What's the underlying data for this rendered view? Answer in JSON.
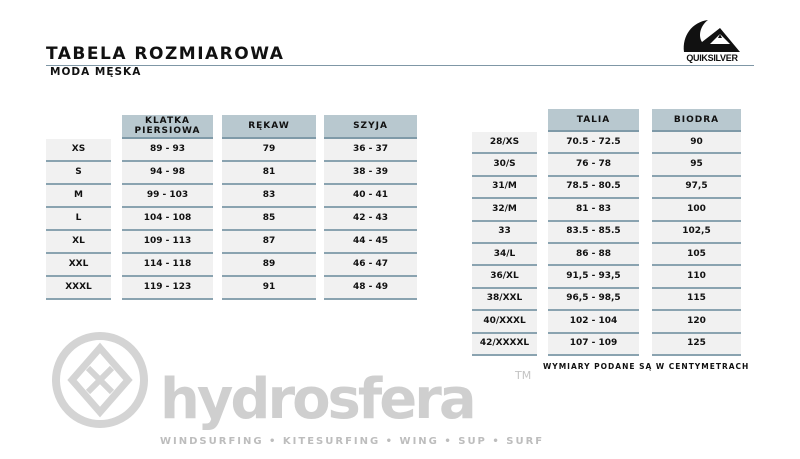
{
  "header": {
    "title": "TABELA ROZMIAROWA",
    "subtitle": "MODA MĘSKA",
    "brand": "QUIKSILVER"
  },
  "watermark": {
    "word": "hydrosfera",
    "tagline": "WINDSURFING • KITESURFING • WING • SUP • SURF",
    "tm": "TM"
  },
  "colors": {
    "header_bg": "#b8c8cf",
    "cell_bg": "#f1f1f1",
    "rule": "#7f9aa8"
  },
  "top_table": {
    "sizes": [
      "XS",
      "S",
      "M",
      "L",
      "XL",
      "XXL",
      "XXXL"
    ],
    "columns": [
      {
        "header": "KLATKA PIERSIOWA",
        "values": [
          "89 - 93",
          "94 - 98",
          "99 - 103",
          "104 - 108",
          "109 - 113",
          "114 - 118",
          "119 - 123"
        ]
      },
      {
        "header": "RĘKAW",
        "values": [
          "79",
          "81",
          "83",
          "85",
          "87",
          "89",
          "91"
        ]
      },
      {
        "header": "SZYJA",
        "values": [
          "36 - 37",
          "38 - 39",
          "40 - 41",
          "42 - 43",
          "44 - 45",
          "46 - 47",
          "48 - 49"
        ]
      }
    ]
  },
  "bottom_table": {
    "sizes": [
      "28/XS",
      "30/S",
      "31/M",
      "32/M",
      "33",
      "34/L",
      "36/XL",
      "38/XXL",
      "40/XXXL",
      "42/XXXXL"
    ],
    "columns": [
      {
        "header": "TALIA",
        "values": [
          "70.5 - 72.5",
          "76 - 78",
          "78.5 - 80.5",
          "81 - 83",
          "83.5 - 85.5",
          "86 - 88",
          "91,5 - 93,5",
          "96,5 - 98,5",
          "102 - 104",
          "107 - 109"
        ]
      },
      {
        "header": "BIODRA",
        "values": [
          "90",
          "95",
          "97,5",
          "100",
          "102,5",
          "105",
          "110",
          "115",
          "120",
          "125"
        ]
      }
    ]
  },
  "note": "WYMIARY PODANE SĄ W CENTYMETRACH"
}
